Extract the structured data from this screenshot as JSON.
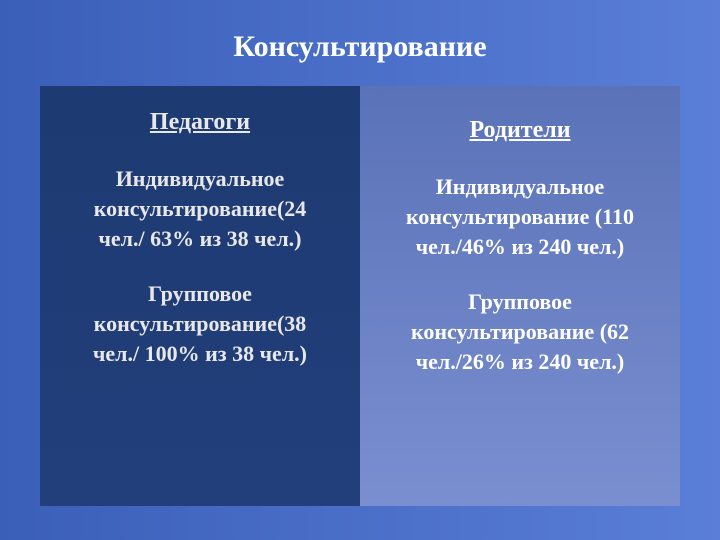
{
  "slide": {
    "title": "Консультирование",
    "background_gradient": [
      "#3a5fb8",
      "#5a7fd8"
    ],
    "title_color": "#ffffff",
    "title_fontsize": 30,
    "panels": {
      "left": {
        "heading": "Педагоги",
        "background": "#1e3a72",
        "text_color": "#e8e8e8",
        "fontsize": 22,
        "blocks": [
          {
            "line1": "Индивидуальное",
            "line2": "консультирование(24",
            "line3": "чел./ 63% из 38 чел.)"
          },
          {
            "line1": "Групповое",
            "line2": "консультирование(38",
            "line3": "чел./ 100% из 38 чел.)"
          }
        ]
      },
      "right": {
        "heading": "Родители",
        "background": "#5a72b8",
        "text_color": "#ffffff",
        "fontsize": 22,
        "blocks": [
          {
            "line1": "Индивидуальное",
            "line2": "консультирование (110",
            "line3": "чел./46% из 240 чел.)"
          },
          {
            "line1": "Групповое",
            "line2": "консультирование (62",
            "line3": "чел./26% из 240 чел.)"
          }
        ]
      }
    }
  }
}
